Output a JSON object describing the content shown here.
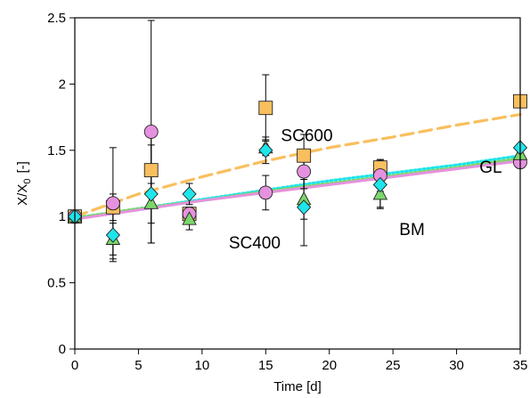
{
  "chart_data": {
    "type": "scatter",
    "xlabel": "Time [d]",
    "ylabel": {
      "main": "X/X",
      "sub": "0",
      "unit": "[-]"
    },
    "xlim": [
      0,
      35
    ],
    "ylim": [
      0,
      2.5
    ],
    "xticks": [
      0,
      5,
      10,
      15,
      20,
      25,
      30,
      35
    ],
    "yticks": [
      0,
      0.5,
      1,
      1.5,
      2,
      2.5
    ],
    "xtick_labels": [
      "0",
      "5",
      "10",
      "15",
      "20",
      "25",
      "30",
      "35"
    ],
    "ytick_labels": [
      "0",
      "0.5",
      "1",
      "1.5",
      "2",
      "2.5"
    ],
    "grid": false,
    "series": [
      {
        "name": "SC600",
        "marker": "square",
        "color": "#F9BF5E",
        "stroke": "#222222",
        "points": [
          {
            "x": 0,
            "y": 1.0,
            "err": 0.0
          },
          {
            "x": 3,
            "y": 1.07,
            "err": 0.1
          },
          {
            "x": 6,
            "y": 1.35,
            "err": 0.25
          },
          {
            "x": 9,
            "y": 1.02,
            "err": 0.05
          },
          {
            "x": 15,
            "y": 1.82,
            "err": 0.25
          },
          {
            "x": 18,
            "y": 1.46,
            "err": 0.16
          },
          {
            "x": 24,
            "y": 1.37,
            "err": 0.06
          },
          {
            "x": 35,
            "y": 1.87,
            "err": 0.0
          }
        ]
      },
      {
        "name": "SC400",
        "marker": "circle",
        "color": "#E592DE",
        "stroke": "#222222",
        "points": [
          {
            "x": 0,
            "y": 1.0,
            "err": 0.0
          },
          {
            "x": 3,
            "y": 1.1,
            "err": 0.42
          },
          {
            "x": 6,
            "y": 1.64,
            "err": 0.84
          },
          {
            "x": 9,
            "y": 1.02,
            "err": 0.05
          },
          {
            "x": 15,
            "y": 1.18,
            "err": 0.13
          },
          {
            "x": 18,
            "y": 1.34,
            "err": 0.13
          },
          {
            "x": 24,
            "y": 1.31,
            "err": 0.12
          },
          {
            "x": 35,
            "y": 1.41,
            "err": 0.0
          }
        ]
      },
      {
        "name": "BM",
        "marker": "triangle",
        "color": "#7CD66B",
        "stroke": "#222222",
        "points": [
          {
            "x": 0,
            "y": 1.0,
            "err": 0.0
          },
          {
            "x": 3,
            "y": 0.83,
            "err": 0.12
          },
          {
            "x": 6,
            "y": 1.1,
            "err": 0.15
          },
          {
            "x": 9,
            "y": 0.98,
            "err": 0.08
          },
          {
            "x": 15,
            "y": 1.52,
            "err": 0.06
          },
          {
            "x": 18,
            "y": 1.13,
            "err": 0.15
          },
          {
            "x": 24,
            "y": 1.17,
            "err": 0.1
          },
          {
            "x": 35,
            "y": 1.47,
            "err": 0.0
          }
        ]
      },
      {
        "name": "GL",
        "marker": "diamond",
        "color": "#1FE5EB",
        "stroke": "#222222",
        "points": [
          {
            "x": 0,
            "y": 1.0,
            "err": 0.0
          },
          {
            "x": 3,
            "y": 0.86,
            "err": 0.2
          },
          {
            "x": 6,
            "y": 1.17,
            "err": 0.37
          },
          {
            "x": 9,
            "y": 1.17,
            "err": 0.08
          },
          {
            "x": 15,
            "y": 1.5,
            "err": 0.1
          },
          {
            "x": 18,
            "y": 1.07,
            "err": 0.29
          },
          {
            "x": 24,
            "y": 1.24,
            "err": 0.18
          },
          {
            "x": 35,
            "y": 1.52,
            "err": 0.0
          }
        ]
      }
    ],
    "fit_lines": [
      {
        "series": "SC600",
        "color": "#F9BF5E",
        "dash": "dashed",
        "x": [
          0,
          5,
          10,
          15,
          20,
          25,
          30,
          35
        ],
        "y": [
          1.0,
          1.17,
          1.3,
          1.42,
          1.52,
          1.6,
          1.69,
          1.77
        ]
      },
      {
        "series": "GL",
        "color": "#1FE5EB",
        "dash": "dotted",
        "x": [
          0,
          5,
          10,
          15,
          20,
          25,
          30,
          35
        ],
        "y": [
          0.99,
          1.06,
          1.13,
          1.2,
          1.27,
          1.33,
          1.39,
          1.46
        ]
      },
      {
        "series": "BM",
        "color": "#7CD66B",
        "dash": "dotted",
        "x": [
          0,
          5,
          10,
          15,
          20,
          25,
          30,
          35
        ],
        "y": [
          0.99,
          1.06,
          1.12,
          1.19,
          1.25,
          1.31,
          1.37,
          1.44
        ]
      },
      {
        "series": "SC400",
        "color": "#E592DE",
        "dash": "solid",
        "x": [
          0,
          5,
          10,
          15,
          20,
          25,
          30,
          35
        ],
        "y": [
          0.98,
          1.05,
          1.12,
          1.18,
          1.24,
          1.3,
          1.36,
          1.42
        ]
      }
    ],
    "annotations": [
      {
        "text": "SC600",
        "x": 16.2,
        "y": 1.57
      },
      {
        "text": "SC400",
        "x": 12.1,
        "y": 0.76
      },
      {
        "text": "BM",
        "x": 25.5,
        "y": 0.86
      },
      {
        "text": "GL",
        "x": 31.8,
        "y": 1.33
      }
    ]
  }
}
